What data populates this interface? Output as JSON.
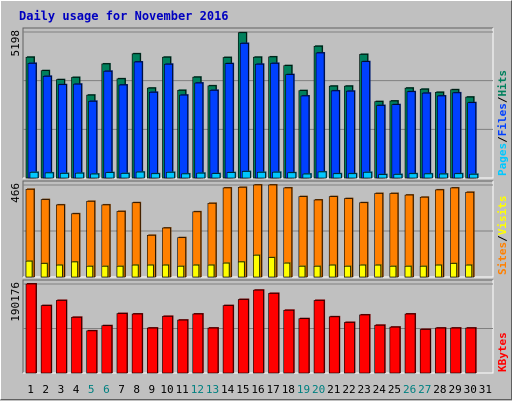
{
  "title": "Daily usage for November 2016",
  "colors": {
    "hits": "#00805c",
    "files": "#0040ff",
    "pages": "#00c8ff",
    "visits": "#ff8000",
    "sites": "#ffff00",
    "kbytes": "#ff0000",
    "weekend": "#008080",
    "weekday": "#000000",
    "title": "#0000c0"
  },
  "labels": {
    "pages": "Pages",
    "files": "Files",
    "hits": "Hits",
    "sites": "Sites",
    "visits": "Visits",
    "kbytes": "KBytes",
    "sep": "/"
  },
  "chart_data": {
    "type": "bar",
    "title": "Daily usage for November 2016",
    "categories": [
      "1",
      "2",
      "3",
      "4",
      "5",
      "6",
      "7",
      "8",
      "9",
      "10",
      "11",
      "12",
      "13",
      "14",
      "15",
      "16",
      "17",
      "18",
      "19",
      "20",
      "21",
      "22",
      "23",
      "24",
      "25",
      "26",
      "27",
      "28",
      "29",
      "30",
      "31"
    ],
    "weekend_days": [
      "5",
      "6",
      "12",
      "13",
      "19",
      "20",
      "26",
      "27"
    ],
    "panels": [
      {
        "id": "hits",
        "ymax": 5198,
        "ymax_label": "5198",
        "series": [
          {
            "name": "Hits",
            "values": [
              4300,
              3820,
              3500,
              3580,
              2950,
              4060,
              3530,
              4420,
              3200,
              4300,
              3120,
              3590,
              3280,
              4290,
              5170,
              4300,
              4310,
              4000,
              3110,
              4690,
              3270,
              3270,
              4400,
              2720,
              2740,
              3200,
              3160,
              3050,
              3140,
              2880,
              0
            ]
          },
          {
            "name": "Files",
            "values": [
              4080,
              3620,
              3320,
              3340,
              2730,
              3800,
              3310,
              4130,
              3050,
              4050,
              2950,
              3380,
              3120,
              4070,
              4790,
              4050,
              4080,
              3680,
              2920,
              4450,
              3100,
              3090,
              4140,
              2580,
              2610,
              3070,
              3020,
              2920,
              3030,
              2680,
              0
            ]
          },
          {
            "name": "Pages",
            "values": [
              200,
              180,
              160,
              170,
              140,
              190,
              160,
              210,
              150,
              200,
              145,
              170,
              155,
              190,
              230,
              200,
              205,
              185,
              140,
              215,
              150,
              150,
              200,
              120,
              125,
              150,
              145,
              140,
              150,
              130,
              0
            ]
          }
        ]
      },
      {
        "id": "visits",
        "ymax": 466,
        "ymax_label": "466",
        "series": [
          {
            "name": "Visits",
            "values": [
              444,
              392,
              365,
              320,
              383,
              365,
              332,
              376,
              211,
              248,
              199,
              330,
              373,
              451,
              454,
              466,
              466,
              451,
              407,
              390,
              407,
              397,
              376,
              423,
              423,
              415,
              404,
              441,
              451,
              429,
              0
            ]
          },
          {
            "name": "Sites",
            "values": [
              80,
              68,
              60,
              76,
              54,
              54,
              54,
              60,
              60,
              60,
              54,
              60,
              60,
              70,
              76,
              110,
              98,
              70,
              54,
              54,
              60,
              54,
              60,
              60,
              54,
              54,
              54,
              60,
              68,
              60,
              0
            ]
          }
        ]
      },
      {
        "id": "kbytes",
        "ymax": 190176,
        "ymax_label": "190176",
        "series": [
          {
            "name": "KBytes",
            "values": [
              190176,
              144000,
              155000,
              119000,
              90000,
              101000,
              127000,
              126000,
              96000,
              121000,
              113000,
              126000,
              96000,
              144000,
              157000,
              177000,
              170000,
              134000,
              116000,
              155000,
              120000,
              108000,
              124000,
              102000,
              98000,
              126000,
              93000,
              96000,
              96000,
              96000,
              0
            ]
          }
        ]
      }
    ]
  }
}
